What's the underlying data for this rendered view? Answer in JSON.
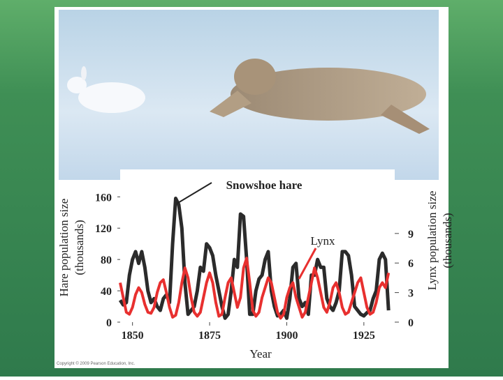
{
  "chart_data": {
    "type": "line",
    "annotations": [
      "Snowshoe hare",
      "Lynx"
    ],
    "xlabel": "Year",
    "ylabel": [
      "Hare population size",
      "(thousands)"
    ],
    "y2label": [
      "Lynx population size",
      "(thousands)"
    ],
    "credit": "Copyright © 2009 Pearson Education, Inc.",
    "x": [
      1846,
      1847,
      1848,
      1849,
      1850,
      1851,
      1852,
      1853,
      1854,
      1855,
      1856,
      1857,
      1858,
      1859,
      1860,
      1861,
      1862,
      1863,
      1864,
      1865,
      1866,
      1867,
      1868,
      1869,
      1870,
      1871,
      1872,
      1873,
      1874,
      1875,
      1876,
      1877,
      1878,
      1879,
      1880,
      1881,
      1882,
      1883,
      1884,
      1885,
      1886,
      1887,
      1888,
      1889,
      1890,
      1891,
      1892,
      1893,
      1894,
      1895,
      1896,
      1897,
      1898,
      1899,
      1900,
      1901,
      1902,
      1903,
      1904,
      1905,
      1906,
      1907,
      1908,
      1909,
      1910,
      1911,
      1912,
      1913,
      1914,
      1915,
      1916,
      1917,
      1918,
      1919,
      1920,
      1921,
      1922,
      1923,
      1924,
      1925,
      1926,
      1927,
      1928,
      1929,
      1930,
      1931,
      1932,
      1933
    ],
    "series": [
      {
        "name": "Snowshoe hare",
        "color": "#2b2b2b",
        "values": [
          28,
          22,
          25,
          60,
          80,
          90,
          75,
          90,
          70,
          40,
          25,
          30,
          20,
          15,
          30,
          35,
          25,
          100,
          158,
          150,
          120,
          50,
          10,
          15,
          20,
          40,
          70,
          65,
          100,
          95,
          85,
          60,
          40,
          20,
          5,
          10,
          40,
          80,
          70,
          138,
          135,
          80,
          10,
          10,
          40,
          55,
          60,
          80,
          90,
          40,
          20,
          8,
          10,
          15,
          5,
          30,
          70,
          75,
          30,
          20,
          25,
          10,
          60,
          60,
          80,
          70,
          70,
          30,
          20,
          15,
          25,
          40,
          90,
          90,
          85,
          60,
          20,
          15,
          10,
          8,
          12,
          15,
          30,
          40,
          80,
          88,
          80,
          15
        ]
      },
      {
        "name": "Lynx",
        "color": "#e8302f",
        "axis": "y2",
        "values": [
          4,
          2.5,
          1,
          0.8,
          1.5,
          2.8,
          3.5,
          3,
          1.8,
          1,
          0.9,
          1.5,
          3,
          4,
          4.3,
          3,
          1.5,
          0.5,
          0.7,
          2,
          4,
          5.5,
          4.5,
          2.5,
          1,
          0.6,
          1,
          2.5,
          4,
          5,
          4,
          2,
          0.6,
          0.8,
          2.5,
          4,
          4.5,
          3,
          1.5,
          2.5,
          5.5,
          6.5,
          4,
          1.2,
          0.6,
          1,
          2.5,
          3.5,
          4.5,
          4,
          2.5,
          1,
          0.4,
          0.8,
          2.5,
          3.5,
          4,
          2.5,
          1.5,
          0.5,
          1,
          2.5,
          4,
          5.5,
          4.5,
          3,
          1.5,
          1,
          2,
          3.5,
          4,
          3,
          1.5,
          0.8,
          1,
          2,
          3,
          4,
          4.5,
          3,
          1.5,
          0.8,
          1,
          2,
          3.5,
          4,
          3.5,
          5
        ]
      }
    ],
    "xlim": [
      1846,
      1935
    ],
    "xticks": [
      1850,
      1875,
      1900,
      1925
    ],
    "ylim": [
      0,
      195
    ],
    "yticks": [
      0,
      40,
      80,
      120,
      160
    ],
    "y2lim": [
      0,
      15.5
    ],
    "y2ticks": [
      0,
      3,
      6,
      9
    ]
  }
}
